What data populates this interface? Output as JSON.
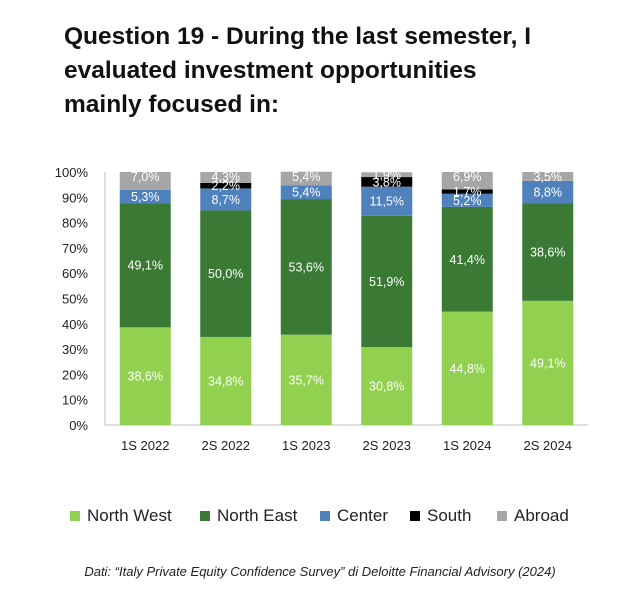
{
  "title_lines": [
    "Question 19 - During the last semester, I",
    "evaluated investment opportunities",
    "mainly focused in:"
  ],
  "source": "Dati: “Italy Private Equity Confidence Survey” di Deloitte Financial Advisory (2024)",
  "chart_data": {
    "type": "bar",
    "stacked": true,
    "categories": [
      "1S 2022",
      "2S 2022",
      "1S 2023",
      "2S 2023",
      "1S 2024",
      "2S 2024"
    ],
    "ylim": [
      0,
      100
    ],
    "yticks": [
      "0%",
      "10%",
      "20%",
      "30%",
      "40%",
      "50%",
      "60%",
      "70%",
      "80%",
      "90%",
      "100%"
    ],
    "series": [
      {
        "name": "North West",
        "color": "#92d050",
        "values": [
          38.6,
          34.8,
          35.7,
          30.8,
          44.8,
          49.1
        ],
        "labels": [
          "38,6%",
          "34,8%",
          "35,7%",
          "30,8%",
          "44,8%",
          "49,1%"
        ]
      },
      {
        "name": "North East",
        "color": "#3a7a35",
        "values": [
          49.1,
          50.0,
          53.6,
          51.9,
          41.4,
          38.6
        ],
        "labels": [
          "49,1%",
          "50,0%",
          "53,6%",
          "51,9%",
          "41,4%",
          "38,6%"
        ]
      },
      {
        "name": "Center",
        "color": "#4f81bd",
        "values": [
          5.3,
          8.7,
          5.4,
          11.5,
          5.2,
          8.8
        ],
        "labels": [
          "5,3%",
          "8,7%",
          "5,4%",
          "11,5%",
          "5,2%",
          "8,8%"
        ]
      },
      {
        "name": "South",
        "color": "#000000",
        "values": [
          0,
          2.2,
          0,
          3.8,
          1.7,
          0
        ],
        "labels": [
          "",
          "2,2%",
          "",
          "3,8%",
          "1,7%",
          ""
        ]
      },
      {
        "name": "Abroad",
        "color": "#a6a6a6",
        "values": [
          7.0,
          4.3,
          5.4,
          1.9,
          6.9,
          3.5
        ],
        "labels": [
          "7,0%",
          "4,3%",
          "5,4%",
          "1,9%",
          "6,9%",
          "3,5%"
        ]
      }
    ],
    "legend_position": "bottom",
    "grid": false
  }
}
